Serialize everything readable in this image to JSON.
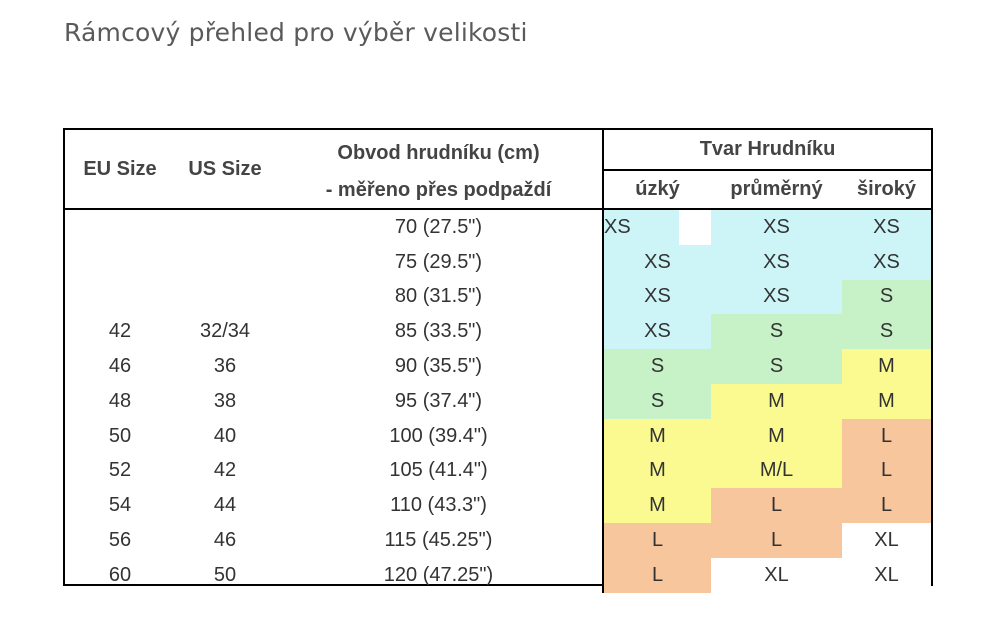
{
  "title": "Rámcový přehled pro výběr velikosti",
  "headers": {
    "eu": "EU Size",
    "us": "US Size",
    "chest_line1": "Obvod hrudníku (cm)",
    "chest_line2": "- měřeno přes podpaždí",
    "shape": "Tvar Hrudníku",
    "narrow": "úzký",
    "average": "průměrný",
    "wide": "široký"
  },
  "colors": {
    "XS": "#cdf5f7",
    "S": "#c7f2c7",
    "M": "#fafa90",
    "L": "#f8c69c",
    "XL": "#ffffff"
  },
  "rows": [
    {
      "eu": "",
      "us": "",
      "chest": "70 (27.5\")",
      "narrow": "XS",
      "average": "XS",
      "wide": "XS"
    },
    {
      "eu": "",
      "us": "",
      "chest": "75 (29.5\")",
      "narrow": "XS",
      "average": "XS",
      "wide": "XS"
    },
    {
      "eu": "",
      "us": "",
      "chest": "80 (31.5\")",
      "narrow": "XS",
      "average": "XS",
      "wide": "S"
    },
    {
      "eu": "42",
      "us": "32/34",
      "chest": "85 (33.5\")",
      "narrow": "XS",
      "average": "S",
      "wide": "S"
    },
    {
      "eu": "46",
      "us": "36",
      "chest": "90 (35.5\")",
      "narrow": "S",
      "average": "S",
      "wide": "M"
    },
    {
      "eu": "48",
      "us": "38",
      "chest": "95 (37.4\")",
      "narrow": "S",
      "average": "M",
      "wide": "M"
    },
    {
      "eu": "50",
      "us": "40",
      "chest": "100 (39.4\")",
      "narrow": "M",
      "average": "M",
      "wide": "L"
    },
    {
      "eu": "52",
      "us": "42",
      "chest": "105 (41.4\")",
      "narrow": "M",
      "average": "M/L",
      "wide": "L"
    },
    {
      "eu": "54",
      "us": "44",
      "chest": "110 (43.3\")",
      "narrow": "M",
      "average": "L",
      "wide": "L"
    },
    {
      "eu": "56",
      "us": "46",
      "chest": "115 (45.25\")",
      "narrow": "L",
      "average": "L",
      "wide": "XL"
    },
    {
      "eu": "60",
      "us": "50",
      "chest": "120 (47.25\")",
      "narrow": "L",
      "average": "XL",
      "wide": "XL"
    }
  ]
}
